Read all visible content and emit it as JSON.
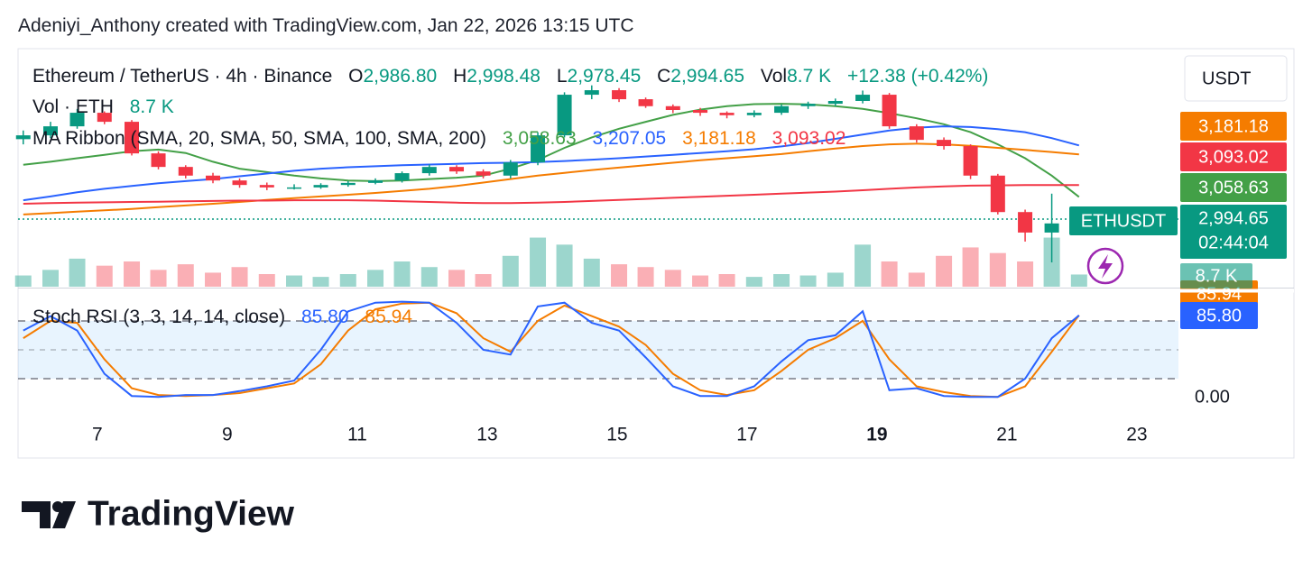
{
  "header": "Adeniyi_Anthony created with TradingView.com, Jan 22, 2026 13:15 UTC",
  "logo": "TradingView",
  "chart_data": {
    "type": "candlestick",
    "symbol": "Ethereum / TetherUS · 4h · Binance",
    "legend_keys": {
      "open": "O",
      "high": "H",
      "low": "L",
      "close": "C",
      "volume": "Vol"
    },
    "last_labels": {
      "open": "2,986.80",
      "high": "2,998.48",
      "low": "2,978.45",
      "close": "2,994.65"
    },
    "change": "+12.38 (+0.42%)",
    "currency": "USDT",
    "ticker": "ETHUSDT",
    "countdown": "02:44:04",
    "up_color": "#089981",
    "down_color": "#f23645",
    "xlim": [
      5.78,
      23.64
    ],
    "xticks": [
      7,
      9,
      11,
      13,
      15,
      17,
      19,
      21,
      23
    ],
    "highlight_xtick": 19,
    "ylim": [
      2800,
      3483
    ],
    "x": [
      5.86,
      6.28,
      6.69,
      7.11,
      7.53,
      7.94,
      8.36,
      8.78,
      9.19,
      9.61,
      10.03,
      10.44,
      10.86,
      11.28,
      11.69,
      12.11,
      12.53,
      12.94,
      13.36,
      13.78,
      14.19,
      14.61,
      15.03,
      15.44,
      15.86,
      16.28,
      16.69,
      17.11,
      17.53,
      17.94,
      18.36,
      18.78,
      19.19,
      19.61,
      20.03,
      20.44,
      20.86,
      21.28,
      21.69,
      22.11
    ],
    "open": [
      3225,
      3236,
      3262,
      3301,
      3275,
      3184,
      3145,
      3120,
      3106,
      3093,
      3086,
      3086,
      3093,
      3099,
      3106,
      3127,
      3145,
      3132,
      3120,
      3158,
      3236,
      3353,
      3366,
      3340,
      3320,
      3309,
      3301,
      3294,
      3301,
      3320,
      3327,
      3335,
      3353,
      3262,
      3223,
      3205,
      3120,
      3015,
      2956,
      2986.8
    ],
    "high": [
      3250,
      3275,
      3312,
      3305,
      3280,
      3190,
      3150,
      3128,
      3112,
      3100,
      3095,
      3098,
      3104,
      3112,
      3132,
      3152,
      3150,
      3138,
      3165,
      3245,
      3360,
      3380,
      3372,
      3345,
      3325,
      3315,
      3305,
      3308,
      3325,
      3333,
      3342,
      3365,
      3358,
      3268,
      3230,
      3210,
      3125,
      3022,
      3068,
      2998.48
    ],
    "low": [
      3210,
      3228,
      3255,
      3268,
      3178,
      3138,
      3112,
      3098,
      3085,
      3078,
      3080,
      3082,
      3088,
      3095,
      3100,
      3120,
      3125,
      3112,
      3112,
      3150,
      3230,
      3340,
      3332,
      3315,
      3300,
      3292,
      3285,
      3288,
      3295,
      3312,
      3320,
      3328,
      3255,
      3215,
      3195,
      3110,
      3008,
      2930,
      2870,
      2978.45
    ],
    "close": [
      3236,
      3262,
      3301,
      3275,
      3184,
      3145,
      3120,
      3106,
      3093,
      3086,
      3086,
      3093,
      3099,
      3106,
      3127,
      3145,
      3132,
      3120,
      3158,
      3236,
      3353,
      3366,
      3340,
      3320,
      3309,
      3301,
      3294,
      3301,
      3320,
      3327,
      3335,
      3353,
      3262,
      3223,
      3205,
      3120,
      3015,
      2956,
      2982.27,
      2994.65
    ],
    "volume": {
      "title": "Vol · ETH",
      "vlim": [
        0,
        45
      ],
      "values": [
        8,
        12,
        20,
        15,
        18,
        12,
        16,
        10,
        14,
        9,
        8,
        7,
        9,
        12,
        18,
        14,
        12,
        9,
        22,
        35,
        30,
        20,
        16,
        14,
        12,
        8,
        9,
        7,
        9,
        8,
        10,
        30,
        18,
        10,
        22,
        28,
        24,
        18,
        35,
        8.7
      ],
      "last_label": "8.7 K"
    },
    "ma_ribbon": {
      "title": "MA Ribbon (SMA, 20, SMA, 50, SMA, 100, SMA, 200)",
      "series": [
        {
          "color": "#43a047",
          "last_label": "3,058.63",
          "values": [
            3151,
            3160,
            3170,
            3180,
            3190,
            3195,
            3185,
            3160,
            3140,
            3130,
            3120,
            3112,
            3106,
            3104,
            3106,
            3110,
            3114,
            3120,
            3140,
            3165,
            3200,
            3230,
            3255,
            3275,
            3295,
            3310,
            3320,
            3326,
            3327,
            3325,
            3320,
            3312,
            3300,
            3285,
            3268,
            3245,
            3210,
            3170,
            3120,
            3058.63
          ]
        },
        {
          "color": "#2962ff",
          "last_label": "3,207.05",
          "values": [
            3049,
            3060,
            3072,
            3082,
            3090,
            3098,
            3104,
            3110,
            3118,
            3126,
            3134,
            3140,
            3144,
            3147,
            3150,
            3152,
            3154,
            3156,
            3157,
            3159,
            3162,
            3166,
            3170,
            3175,
            3180,
            3185,
            3190,
            3196,
            3204,
            3214,
            3226,
            3238,
            3250,
            3258,
            3262,
            3260,
            3254,
            3245,
            3228,
            3207.05
          ]
        },
        {
          "color": "#f57c00",
          "last_label": "3,181.18",
          "values": [
            3008,
            3012,
            3016,
            3020,
            3024,
            3029,
            3034,
            3039,
            3044,
            3050,
            3055,
            3060,
            3065,
            3070,
            3076,
            3082,
            3090,
            3100,
            3110,
            3120,
            3128,
            3136,
            3143,
            3150,
            3157,
            3164,
            3170,
            3176,
            3182,
            3190,
            3198,
            3205,
            3210,
            3212,
            3210,
            3206,
            3200,
            3194,
            3188,
            3181.18
          ]
        },
        {
          "color": "#f23645",
          "last_label": "3,093.02",
          "values": [
            3039,
            3041,
            3042,
            3043,
            3044,
            3045,
            3046,
            3047,
            3048,
            3048,
            3049,
            3049,
            3049,
            3048,
            3046,
            3044,
            3042,
            3041,
            3041,
            3042,
            3044,
            3047,
            3050,
            3053,
            3056,
            3059,
            3062,
            3065,
            3068,
            3071,
            3074,
            3078,
            3082,
            3086,
            3089,
            3091,
            3092,
            3093,
            3093,
            3093.02
          ]
        }
      ]
    },
    "stoch_rsi": {
      "title": "Stoch RSI (3, 3, 14, 14, close)",
      "ylim": [
        0,
        100
      ],
      "yticks": [
        {
          "value": 0,
          "label": "0.00"
        }
      ],
      "levels": [
        20,
        50,
        80
      ],
      "series": [
        {
          "color": "#2962ff",
          "last_label": "85.80",
          "values": [
            70,
            85,
            70,
            25,
            2,
            1,
            3,
            3,
            7,
            12,
            18,
            50,
            90,
            99,
            100,
            99,
            78,
            50,
            45,
            95,
            99,
            78,
            70,
            42,
            12,
            2,
            2,
            12,
            38,
            60,
            65,
            90,
            8,
            10,
            2,
            1,
            1,
            20,
            62,
            85.8
          ]
        },
        {
          "color": "#f57c00",
          "last_label": "85.94",
          "values": [
            62,
            80,
            78,
            40,
            10,
            3,
            2,
            3,
            5,
            10,
            15,
            35,
            70,
            92,
            98,
            99,
            88,
            62,
            48,
            80,
            96,
            85,
            74,
            55,
            25,
            8,
            3,
            8,
            28,
            50,
            62,
            80,
            40,
            12,
            6,
            2,
            1,
            12,
            48,
            85.94
          ]
        }
      ]
    }
  }
}
